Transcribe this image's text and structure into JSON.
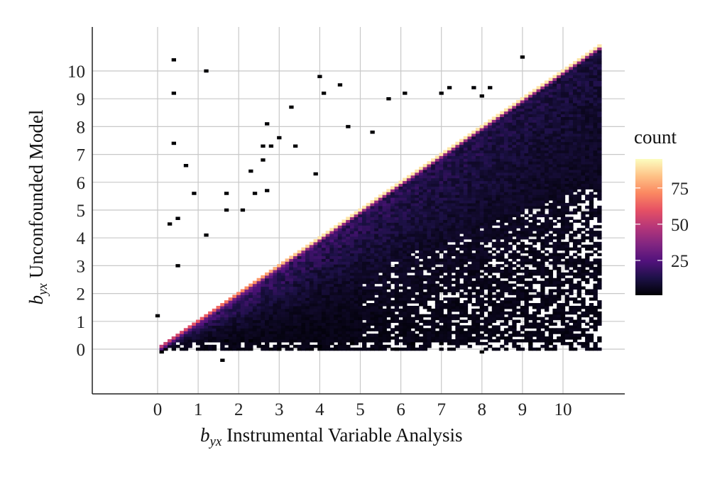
{
  "chart_data": {
    "type": "heatmap",
    "title": "",
    "xlabel": {
      "symbol": "b",
      "subscript": "yx",
      "text": "Instrumental Variable Analysis"
    },
    "ylabel": {
      "symbol": "b",
      "subscript": "yx",
      "text": "Unconfounded Model"
    },
    "x_ticks": [
      "0",
      "1",
      "2",
      "3",
      "4",
      "5",
      "6",
      "7",
      "8",
      "9",
      "10"
    ],
    "y_ticks": [
      "0",
      "1",
      "2",
      "3",
      "4",
      "5",
      "6",
      "7",
      "8",
      "9",
      "10"
    ],
    "xlim": [
      -1.6,
      11.5
    ],
    "ylim": [
      -1.6,
      11.5
    ],
    "grid": true,
    "bin_width": 0.1,
    "legend": {
      "title": "count",
      "position": "right",
      "ticks": [
        25,
        50,
        75
      ],
      "range": [
        1,
        95
      ],
      "colormap": "magma",
      "colors": [
        "#000004",
        "#1d1147",
        "#51127c",
        "#822681",
        "#b63679",
        "#e65164",
        "#fb8861",
        "#fec287",
        "#fcfdbf"
      ]
    },
    "description_of_density": "counts concentrated on and just below the identity line y = x for 0 < x < 10.9; peak counts (~90) along the diagonal, decreasing toward the x axis; sparse isolated bins scattered above the diagonal and near the x axis",
    "diagonal": {
      "from": [
        0.1,
        0.1
      ],
      "to": [
        10.9,
        10.9
      ],
      "peak_count": 90
    },
    "outlier_bins": [
      [
        0.4,
        10.4
      ],
      [
        1.2,
        10.0
      ],
      [
        0.4,
        9.2
      ],
      [
        0.4,
        7.4
      ],
      [
        0.7,
        6.6
      ],
      [
        0.9,
        5.6
      ],
      [
        0.5,
        4.7
      ],
      [
        0.3,
        4.5
      ],
      [
        1.2,
        4.1
      ],
      [
        0.5,
        3.0
      ],
      [
        1.7,
        5.6
      ],
      [
        1.7,
        5.0
      ],
      [
        2.1,
        5.0
      ],
      [
        2.4,
        5.6
      ],
      [
        2.7,
        5.7
      ],
      [
        2.3,
        6.4
      ],
      [
        2.6,
        6.8
      ],
      [
        2.8,
        7.3
      ],
      [
        2.6,
        7.3
      ],
      [
        2.7,
        8.1
      ],
      [
        3.0,
        7.6
      ],
      [
        3.3,
        8.7
      ],
      [
        3.4,
        7.3
      ],
      [
        3.9,
        6.3
      ],
      [
        4.0,
        9.8
      ],
      [
        4.1,
        9.2
      ],
      [
        4.5,
        9.5
      ],
      [
        4.7,
        8.0
      ],
      [
        5.3,
        7.8
      ],
      [
        5.7,
        9.0
      ],
      [
        6.1,
        9.2
      ],
      [
        7.0,
        9.2
      ],
      [
        7.2,
        9.4
      ],
      [
        7.8,
        9.4
      ],
      [
        8.0,
        9.1
      ],
      [
        8.2,
        9.4
      ],
      [
        9.0,
        10.5
      ],
      [
        0.0,
        1.2
      ],
      [
        1.7,
        0.3
      ],
      [
        2.3,
        0.3
      ],
      [
        3.0,
        0.0
      ],
      [
        4.0,
        0.1
      ],
      [
        4.8,
        0.2
      ],
      [
        5.9,
        0.0
      ],
      [
        6.3,
        0.2
      ],
      [
        7.0,
        0.2
      ],
      [
        8.0,
        -0.1
      ],
      [
        9.2,
        0.2
      ],
      [
        9.7,
        0.2
      ],
      [
        10.2,
        0.2
      ],
      [
        1.6,
        -0.4
      ],
      [
        0.1,
        -0.1
      ]
    ]
  }
}
